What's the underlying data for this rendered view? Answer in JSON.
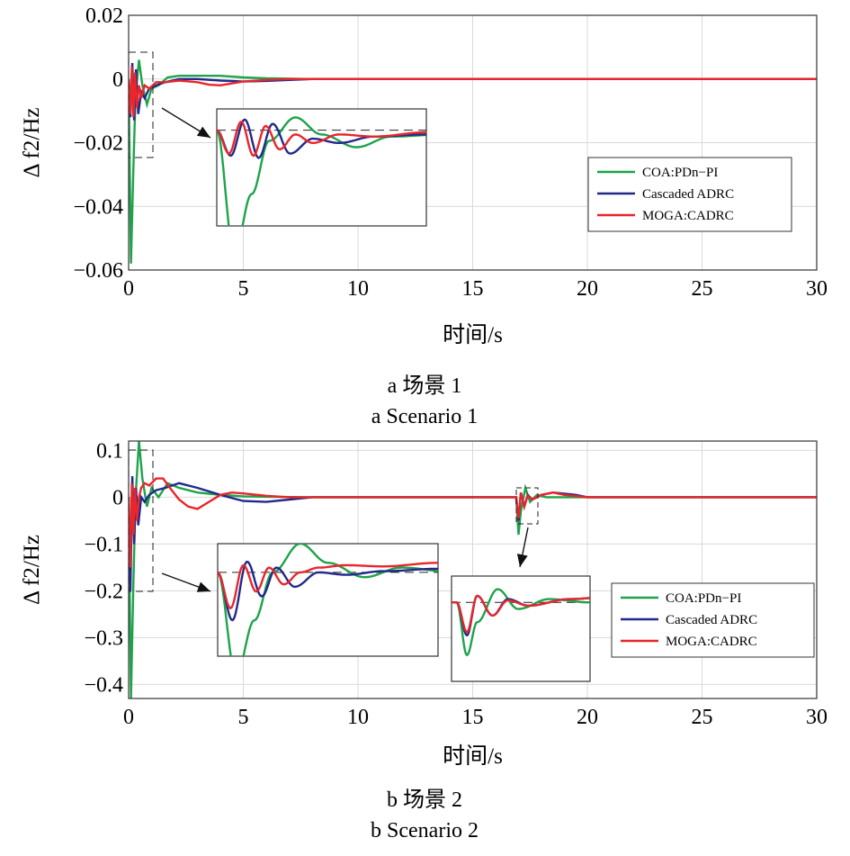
{
  "colors": {
    "green": "#1ea34a",
    "blue": "#23298a",
    "red": "#e8262b",
    "grid": "#d9d9d9",
    "axis": "#333333"
  },
  "chart_data": [
    {
      "type": "line",
      "xlabel": "时间/s",
      "ylabel": "Δ f2/Hz",
      "xlim": [
        0,
        30
      ],
      "ylim": [
        -0.06,
        0.02
      ],
      "xticks": [
        "0",
        "5",
        "10",
        "15",
        "20",
        "25",
        "30"
      ],
      "yticks": [
        "0.02",
        "0",
        "−0.02",
        "−0.04",
        "−0.06"
      ],
      "grid": true,
      "legend": "right",
      "caption_cn": "a  场景 1",
      "caption_en": "a  Scenario 1",
      "series": [
        {
          "name": "COA:PDn−PI",
          "color": "#1ea34a",
          "x": [
            0,
            0.1,
            0.2,
            0.3,
            0.45,
            0.6,
            0.8,
            1.0,
            1.3,
            1.7,
            2.2,
            3,
            4,
            5,
            6,
            8,
            30
          ],
          "y": [
            0,
            -0.058,
            -0.03,
            -0.005,
            0.006,
            -0.002,
            -0.008,
            -0.003,
            -0.002,
            0.0005,
            0.001,
            0.001,
            0.001,
            0.0005,
            0.0002,
            0,
            0
          ]
        },
        {
          "name": "Cascaded ADRC",
          "color": "#23298a",
          "x": [
            0,
            0.08,
            0.16,
            0.24,
            0.32,
            0.42,
            0.55,
            0.7,
            0.9,
            1.2,
            1.6,
            2.2,
            3,
            4,
            5,
            6,
            7,
            8,
            30
          ],
          "y": [
            0,
            -0.012,
            0.005,
            -0.013,
            0.003,
            -0.011,
            -0.004,
            -0.006,
            -0.003,
            -0.002,
            -0.001,
            0,
            0,
            -0.0005,
            -0.0008,
            -0.0006,
            -0.0003,
            0,
            0
          ]
        },
        {
          "name": "MOGA:CADRC",
          "color": "#e8262b",
          "x": [
            0,
            0.07,
            0.14,
            0.21,
            0.28,
            0.36,
            0.45,
            0.55,
            0.7,
            0.9,
            1.2,
            1.6,
            2.2,
            3,
            3.5,
            4,
            5,
            6,
            7,
            8,
            30
          ],
          "y": [
            0,
            -0.011,
            0.004,
            -0.012,
            0.002,
            -0.009,
            -0.002,
            -0.006,
            -0.002,
            -0.003,
            -0.001,
            -0.001,
            -0.0005,
            -0.001,
            -0.0018,
            -0.002,
            -0.0008,
            -0.0003,
            0,
            0,
            0
          ]
        }
      ]
    },
    {
      "type": "line",
      "xlabel": "时间/s",
      "ylabel": "Δ f2/Hz",
      "xlim": [
        0,
        30
      ],
      "ylim": [
        -0.43,
        0.12
      ],
      "xticks": [
        "0",
        "5",
        "10",
        "15",
        "20",
        "25",
        "30"
      ],
      "yticks": [
        "0.1",
        "0",
        "−0.1",
        "−0.2",
        "−0.3",
        "−0.4"
      ],
      "grid": true,
      "legend": "right",
      "caption_cn": "b  场景 2",
      "caption_en": "b  Scenario 2",
      "series": [
        {
          "name": "COA:PDn−PI",
          "color": "#1ea34a",
          "x": [
            0,
            0.1,
            0.2,
            0.3,
            0.45,
            0.6,
            0.8,
            1,
            1.3,
            1.7,
            2.2,
            3,
            4,
            5,
            6,
            8,
            10,
            16.9,
            17,
            17.1,
            17.3,
            17.5,
            17.8,
            18.2,
            19,
            20,
            30
          ],
          "y": [
            0,
            -0.43,
            -0.2,
            0.0,
            0.12,
            0.04,
            -0.02,
            0.02,
            0.0,
            0.03,
            0.02,
            0.01,
            0.005,
            0.002,
            0.001,
            0,
            0,
            0,
            -0.08,
            -0.03,
            0.02,
            -0.01,
            0.005,
            0.0,
            0,
            0,
            0
          ]
        },
        {
          "name": "Cascaded ADRC",
          "color": "#23298a",
          "x": [
            0,
            0.08,
            0.16,
            0.24,
            0.32,
            0.42,
            0.55,
            0.7,
            0.9,
            1.2,
            1.6,
            2.2,
            3,
            4,
            5,
            6,
            7,
            8,
            10,
            16.9,
            17,
            17.1,
            17.25,
            17.4,
            17.6,
            18,
            18.5,
            19.5,
            20,
            30
          ],
          "y": [
            0,
            -0.2,
            0.045,
            -0.1,
            0.02,
            -0.06,
            0.0,
            -0.01,
            0.005,
            0.015,
            0.02,
            0.03,
            0.02,
            0.005,
            -0.008,
            -0.01,
            -0.005,
            0,
            0,
            0,
            -0.05,
            0.01,
            -0.02,
            0.005,
            -0.005,
            0.005,
            0.01,
            0.005,
            0,
            0
          ]
        },
        {
          "name": "MOGA:CADRC",
          "color": "#e8262b",
          "x": [
            0,
            0.07,
            0.14,
            0.21,
            0.28,
            0.36,
            0.45,
            0.55,
            0.7,
            0.9,
            1.2,
            1.5,
            1.8,
            2.2,
            2.6,
            3,
            3.5,
            4,
            4.5,
            5,
            6,
            7,
            8,
            10,
            16.9,
            17,
            17.1,
            17.25,
            17.4,
            17.6,
            18,
            18.5,
            19,
            20,
            30
          ],
          "y": [
            0,
            -0.15,
            0.03,
            -0.08,
            0.02,
            -0.05,
            0.0,
            0.02,
            0.03,
            0.025,
            0.04,
            0.04,
            0.02,
            -0.005,
            -0.02,
            -0.025,
            -0.01,
            0.005,
            0.01,
            0.008,
            0.003,
            0,
            0,
            0,
            0,
            -0.045,
            0.01,
            -0.02,
            0.003,
            -0.005,
            0.005,
            0.01,
            0.005,
            0,
            0
          ]
        }
      ]
    }
  ]
}
